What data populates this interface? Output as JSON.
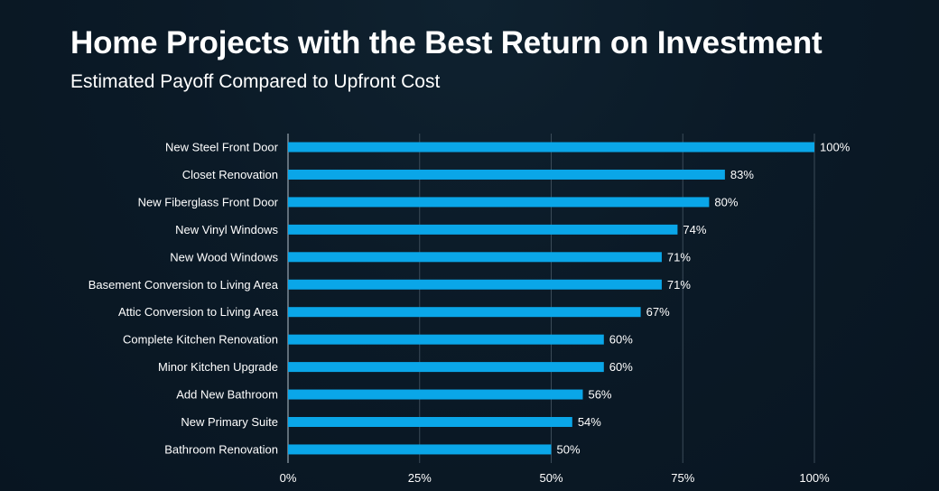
{
  "title": "Home Projects with the Best Return on Investment",
  "subtitle": "Estimated Payoff Compared to Upfront Cost",
  "colors": {
    "bar": "#0aa6e8",
    "grid": "#3b4b58",
    "axis": "#9aa7b1",
    "text": "#ffffff"
  },
  "chart_data": {
    "type": "bar",
    "orientation": "horizontal",
    "categories": [
      "New Steel Front Door",
      "Closet Renovation",
      "New Fiberglass Front Door",
      "New Vinyl Windows",
      "New Wood Windows",
      "Basement Conversion to Living Area",
      "Attic Conversion to Living Area",
      "Complete Kitchen Renovation",
      "Minor Kitchen Upgrade",
      "Add New Bathroom",
      "New Primary Suite",
      "Bathroom Renovation"
    ],
    "values": [
      100,
      83,
      80,
      74,
      71,
      71,
      67,
      60,
      60,
      56,
      54,
      50
    ],
    "value_labels": [
      "100%",
      "83%",
      "80%",
      "74%",
      "71%",
      "71%",
      "67%",
      "60%",
      "60%",
      "56%",
      "54%",
      "50%"
    ],
    "xlim": [
      0,
      100
    ],
    "x_ticks": [
      0,
      25,
      50,
      75,
      100
    ],
    "x_tick_labels": [
      "0%",
      "25%",
      "50%",
      "75%",
      "100%"
    ],
    "grid": true,
    "title": "Home Projects with the Best Return on Investment",
    "subtitle": "Estimated Payoff Compared to Upfront Cost",
    "xlabel": "",
    "ylabel": ""
  }
}
